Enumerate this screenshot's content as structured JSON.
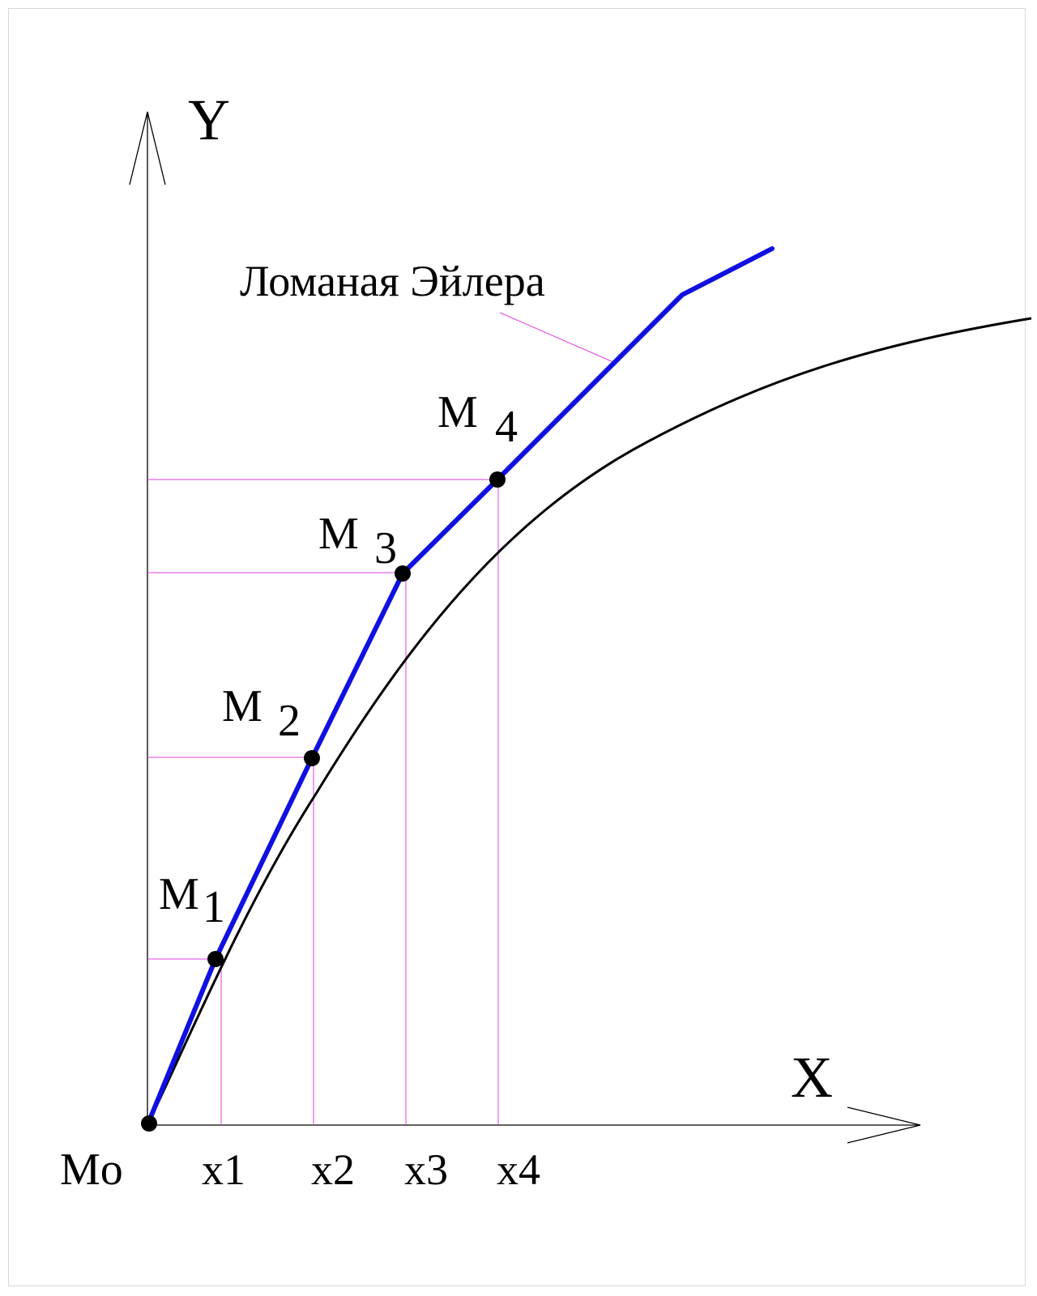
{
  "axes": {
    "y_label": "Y",
    "x_label": "X"
  },
  "curve_label": "Ломаная Эйлера",
  "points": [
    {
      "id": "m0",
      "label": "Mo",
      "sub": ""
    },
    {
      "id": "m1",
      "label": "M",
      "sub": "1"
    },
    {
      "id": "m2",
      "label": "M",
      "sub": "2"
    },
    {
      "id": "m3",
      "label": "M",
      "sub": "3"
    },
    {
      "id": "m4",
      "label": "M",
      "sub": "4"
    }
  ],
  "x_ticks": [
    "x1",
    "x2",
    "x3",
    "x4"
  ],
  "colors": {
    "euler_polyline": "#1010e0",
    "exact_curve": "#000000",
    "guides": "#e040e0",
    "axes": "#000000"
  }
}
